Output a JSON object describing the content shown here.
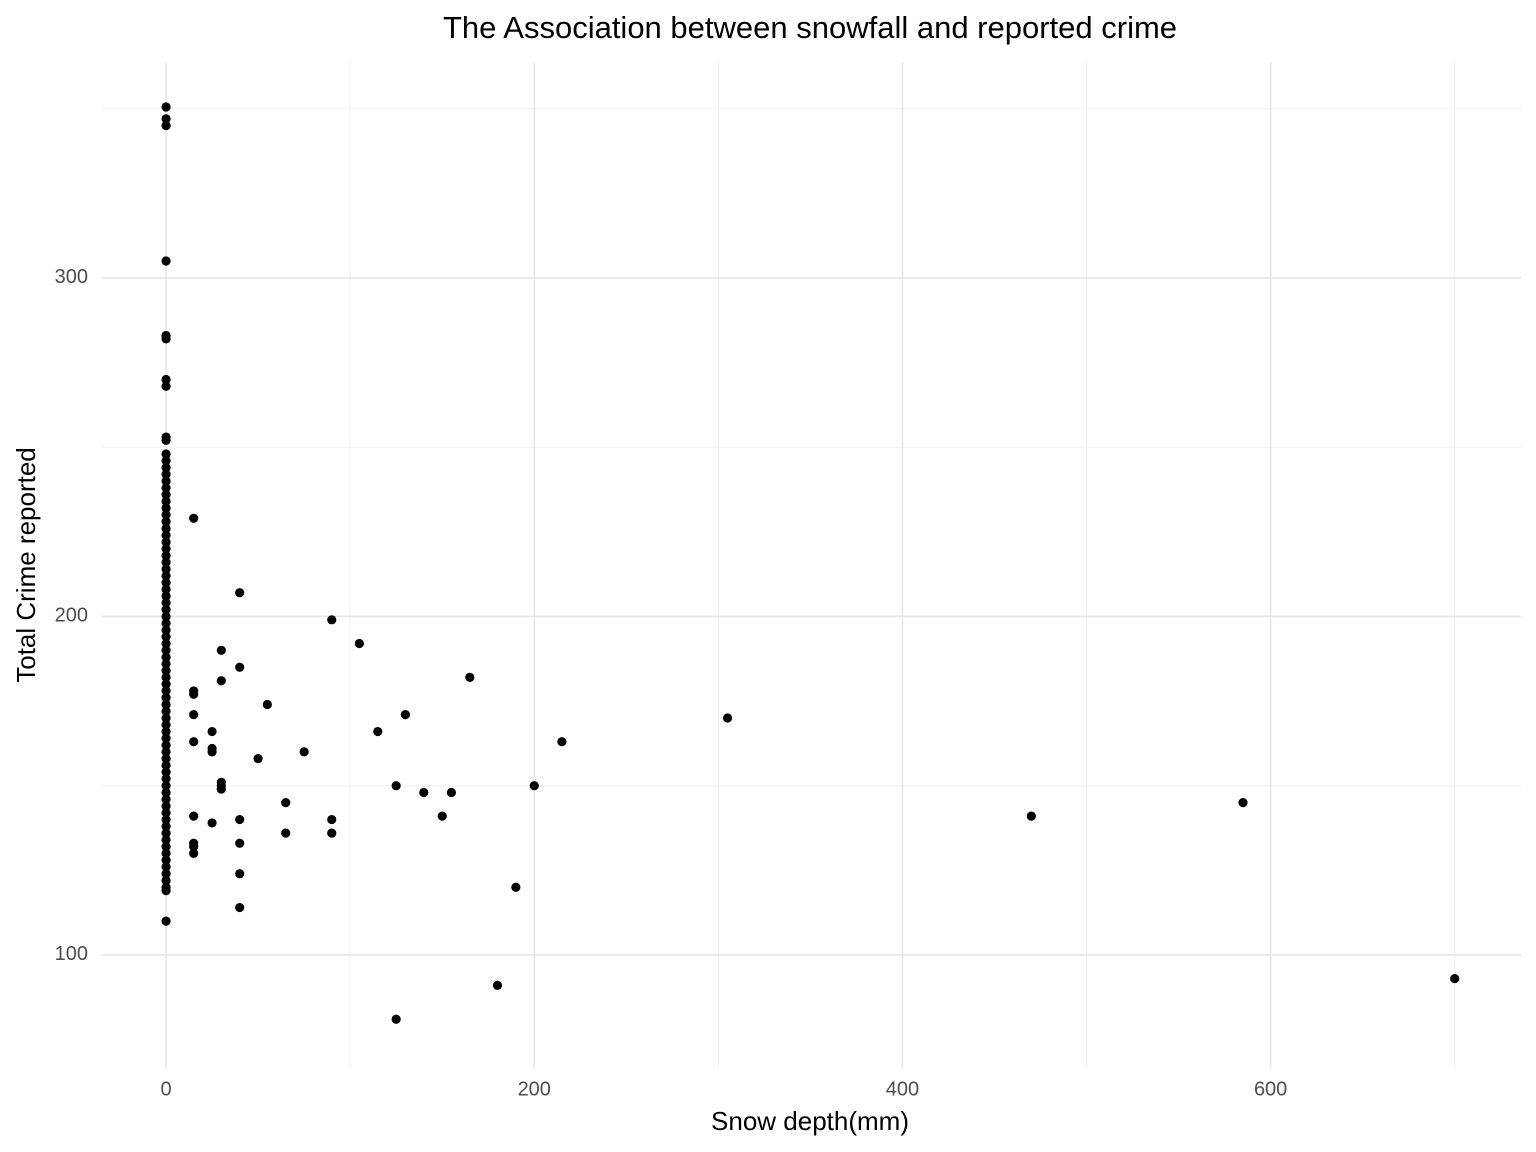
{
  "chart_data": {
    "type": "scatter",
    "title": "The Association between snowfall and reported crime",
    "x_label": "Snow depth(mm)",
    "y_label": "Total Crime reported",
    "color": "#000000",
    "grid": true,
    "xlim": [
      -34.8,
      736
    ],
    "ylim": [
      66.6,
      363.8
    ],
    "xticks": [
      0,
      200,
      400,
      600
    ],
    "yticks": [
      100,
      200,
      300
    ],
    "x": [
      0,
      0,
      0,
      0,
      0,
      0,
      0,
      0,
      0,
      0,
      0,
      0,
      0,
      0,
      0,
      0,
      0,
      0,
      0,
      0,
      0,
      0,
      0,
      0,
      0,
      0,
      0,
      0,
      0,
      0,
      0,
      0,
      0,
      0,
      0,
      0,
      0,
      0,
      0,
      0,
      0,
      0,
      0,
      0,
      0,
      0,
      0,
      0,
      0,
      0,
      0,
      0,
      0,
      0,
      0,
      0,
      0,
      0,
      0,
      0,
      0,
      0,
      0,
      0,
      0,
      0,
      0,
      0,
      0,
      0,
      0,
      0,
      0,
      0,
      0,
      0,
      0,
      15,
      40,
      90,
      105,
      30,
      40,
      30,
      165,
      15,
      15,
      55,
      15,
      130,
      305,
      25,
      115,
      15,
      215,
      25,
      25,
      75,
      50,
      30,
      30,
      30,
      125,
      200,
      140,
      155,
      65,
      585,
      15,
      150,
      470,
      40,
      90,
      25,
      65,
      90,
      40,
      15,
      15,
      15,
      40,
      190,
      40,
      180,
      700,
      125
    ],
    "y": [
      350.5,
      347,
      345,
      305,
      283,
      282,
      270,
      268,
      253,
      252,
      248,
      246,
      244,
      242,
      240,
      238,
      236,
      234,
      232,
      230,
      228,
      226,
      224,
      222,
      220,
      218,
      216,
      214,
      212,
      210,
      208,
      206,
      204,
      202,
      200,
      198,
      196,
      194,
      192,
      190,
      188,
      186,
      184,
      182,
      180,
      178,
      176,
      174,
      172,
      170,
      168,
      166,
      164,
      162,
      160,
      158,
      156,
      154,
      152,
      150,
      148,
      146,
      144,
      142,
      140,
      138,
      136,
      134,
      132,
      130,
      128,
      126,
      124,
      122,
      120,
      119,
      110,
      229,
      207,
      199,
      192,
      190,
      185,
      181,
      182,
      178,
      177,
      174,
      171,
      171,
      170,
      166,
      166,
      163,
      163,
      161,
      160,
      160,
      158,
      151,
      150,
      149,
      150,
      150,
      148,
      148,
      145,
      145,
      141,
      141,
      141,
      140,
      140,
      139,
      136,
      136,
      133,
      133,
      132,
      130,
      124,
      120,
      114,
      91,
      93,
      81
    ]
  }
}
